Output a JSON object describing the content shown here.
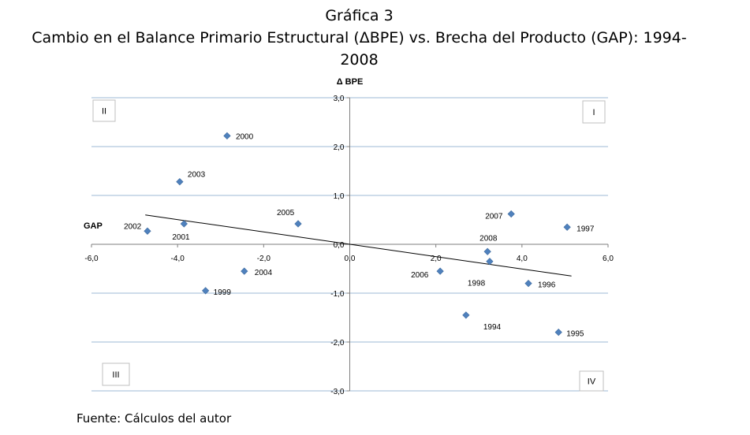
{
  "page": {
    "title_line1": "Gráfica 3",
    "title_line2a": "Cambio en el Balance Primario Estructural (ΔBPE) vs. Brecha del Producto (GAP): 1994-",
    "title_line2b": "2008",
    "source": "Fuente: Cálculos del autor"
  },
  "chart_data": {
    "type": "scatter",
    "title": "Cambio en el Balance Primario Estructural (ΔBPE) vs. Brecha del Producto (GAP): 1994-2008",
    "xlabel": "GAP",
    "ylabel": "Δ BPE",
    "xlim": [
      -6,
      6
    ],
    "ylim": [
      -3,
      3
    ],
    "x_ticks": [
      -6,
      -4,
      -2,
      0,
      2,
      4,
      6
    ],
    "x_tick_labels": [
      "-6,0",
      "-4,0",
      "-2,0",
      "0,0",
      "2,0",
      "4,0",
      "6,0"
    ],
    "y_ticks": [
      3,
      2,
      1,
      0,
      -1,
      -2,
      -3
    ],
    "y_tick_labels": [
      "3,0",
      "2,0",
      "1,0",
      "0,0",
      "-1,0",
      "-2,0",
      "-3,0"
    ],
    "grid": "horizontal",
    "marker_color": "#4F81BD",
    "points": [
      {
        "label": "1994",
        "x": 2.7,
        "y": -1.45
      },
      {
        "label": "1995",
        "x": 4.85,
        "y": -1.8
      },
      {
        "label": "1996",
        "x": 4.15,
        "y": -0.8
      },
      {
        "label": "1997",
        "x": 5.05,
        "y": 0.35
      },
      {
        "label": "1998",
        "x": 3.25,
        "y": -0.35
      },
      {
        "label": "1999",
        "x": -3.35,
        "y": -0.95
      },
      {
        "label": "2000",
        "x": -2.85,
        "y": 2.22
      },
      {
        "label": "2001",
        "x": -3.85,
        "y": 0.42
      },
      {
        "label": "2002",
        "x": -4.7,
        "y": 0.27
      },
      {
        "label": "2003",
        "x": -3.95,
        "y": 1.28
      },
      {
        "label": "2004",
        "x": -2.45,
        "y": -0.55
      },
      {
        "label": "2005",
        "x": -1.2,
        "y": 0.42
      },
      {
        "label": "2006",
        "x": 2.1,
        "y": -0.55
      },
      {
        "label": "2007",
        "x": 3.75,
        "y": 0.62
      },
      {
        "label": "2008",
        "x": 3.2,
        "y": -0.15
      }
    ],
    "trendline": {
      "x": [
        -4.75,
        5.15
      ],
      "y": [
        0.6,
        -0.65
      ]
    },
    "quadrants": {
      "I": "I",
      "II": "II",
      "III": "III",
      "IV": "IV"
    }
  }
}
